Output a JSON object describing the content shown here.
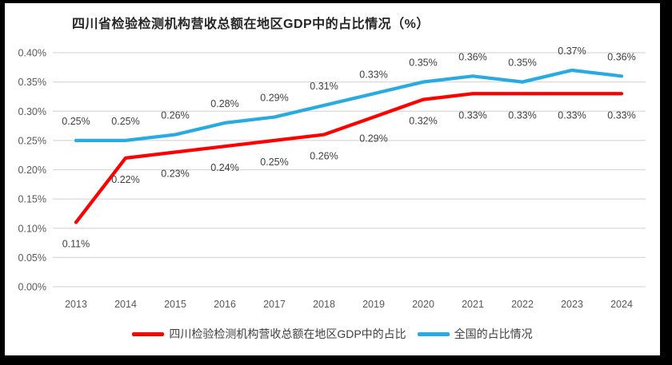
{
  "chart_data": {
    "type": "line",
    "title": "四川省检验检测机构营收总额在地区GDP中的占比情况（%）",
    "categories": [
      "2013",
      "2014",
      "2015",
      "2016",
      "2017",
      "2018",
      "2019",
      "2020",
      "2021",
      "2022",
      "2023",
      "2024"
    ],
    "series": [
      {
        "name": "四川检验检测机构营收总额在地区GDP中的占比",
        "color": "#FF0000",
        "values": [
          0.11,
          0.22,
          0.23,
          0.24,
          0.25,
          0.26,
          0.29,
          0.32,
          0.33,
          0.33,
          0.33,
          0.33
        ],
        "labels": [
          "0.11%",
          "0.22%",
          "0.23%",
          "0.24%",
          "0.25%",
          "0.26%",
          "0.29%",
          "0.32%",
          "0.33%",
          "0.33%",
          "0.33%",
          "0.33%"
        ],
        "label_position": "below"
      },
      {
        "name": "全国的占比情况",
        "color": "#29ABE2",
        "values": [
          0.25,
          0.25,
          0.26,
          0.28,
          0.29,
          0.31,
          0.33,
          0.35,
          0.36,
          0.35,
          0.37,
          0.36
        ],
        "labels": [
          "0.25%",
          "0.25%",
          "0.26%",
          "0.28%",
          "0.29%",
          "0.31%",
          "0.33%",
          "0.35%",
          "0.36%",
          "0.35%",
          "0.37%",
          "0.36%"
        ],
        "label_position": "above"
      }
    ],
    "y_axis": {
      "min": 0,
      "max": 0.4,
      "step": 0.05,
      "tick_labels": [
        "0.00%",
        "0.05%",
        "0.10%",
        "0.15%",
        "0.20%",
        "0.25%",
        "0.30%",
        "0.35%",
        "0.40%"
      ]
    },
    "x_axis": {
      "label": ""
    },
    "grid": true,
    "legend_position": "bottom",
    "colors": {
      "gridline": "#D9D9D9",
      "axis_text": "#595959",
      "data_label_text": "#404040",
      "title_text": "#262626",
      "background": "#FFFFFF",
      "frame": "#000000"
    }
  }
}
